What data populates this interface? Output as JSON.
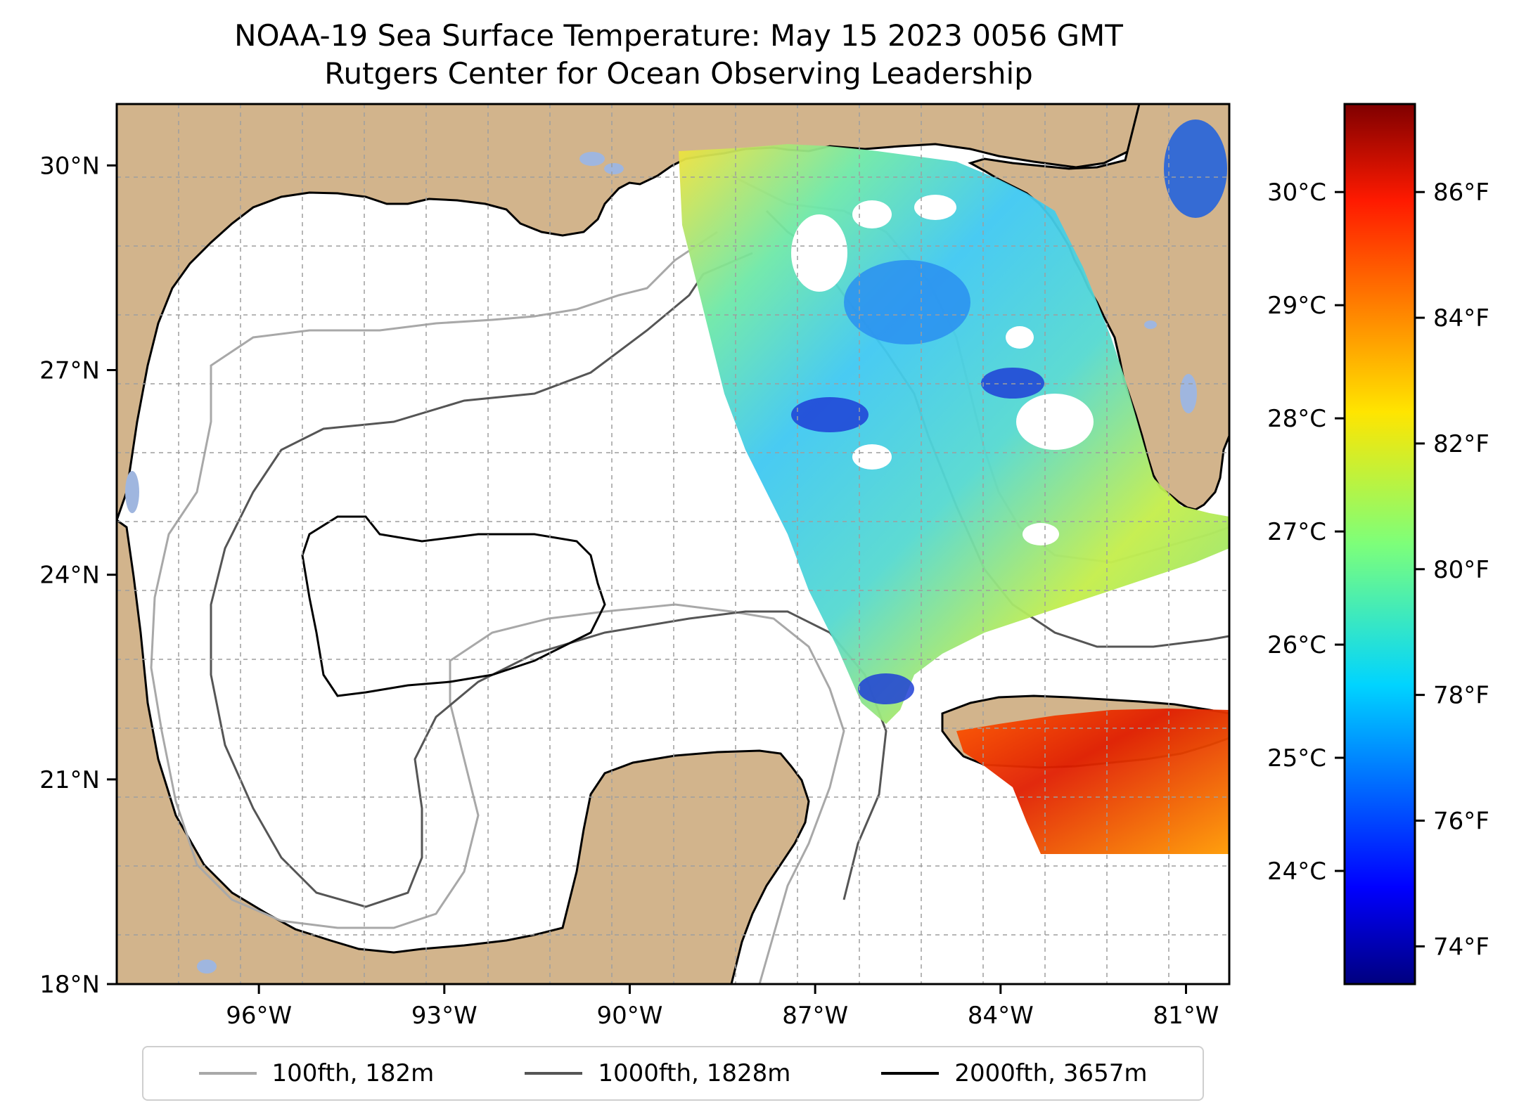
{
  "title": {
    "line1": "NOAA-19 Sea Surface Temperature: May 15 2023 0056 GMT",
    "line2": "Rutgers Center for Ocean Observing Leadership"
  },
  "axes": {
    "lon_ticks": [
      {
        "label": "96°W",
        "value": -96
      },
      {
        "label": "93°W",
        "value": -93
      },
      {
        "label": "90°W",
        "value": -90
      },
      {
        "label": "87°W",
        "value": -87
      },
      {
        "label": "84°W",
        "value": -84
      },
      {
        "label": "81°W",
        "value": -81
      }
    ],
    "lat_ticks": [
      {
        "label": "18°N",
        "value": 18
      },
      {
        "label": "21°N",
        "value": 21
      },
      {
        "label": "24°N",
        "value": 24
      },
      {
        "label": "27°N",
        "value": 27
      },
      {
        "label": "30°N",
        "value": 30
      }
    ],
    "lon_range": [
      -98.3,
      -80.3
    ],
    "lat_range": [
      18,
      30.9
    ],
    "gridlines": true
  },
  "colorbar": {
    "colormap": "jet",
    "fahrenheit_ticks": [
      "74°F",
      "76°F",
      "78°F",
      "80°F",
      "82°F",
      "84°F",
      "86°F"
    ],
    "celsius_ticks": [
      "24°C",
      "25°C",
      "26°C",
      "27°C",
      "28°C",
      "29°C",
      "30°C"
    ],
    "range_f": [
      73.4,
      87.4
    ]
  },
  "legend": {
    "items": [
      {
        "label": "100fth, 182m",
        "color": "#a8a8a8"
      },
      {
        "label": "1000fth, 1828m",
        "color": "#555555"
      },
      {
        "label": "2000fth, 3657m",
        "color": "#000000"
      }
    ]
  },
  "colors": {
    "land": "#d2b48c",
    "water": "#ffffff",
    "lakes": "#9fb6df",
    "coast": "#000000"
  }
}
